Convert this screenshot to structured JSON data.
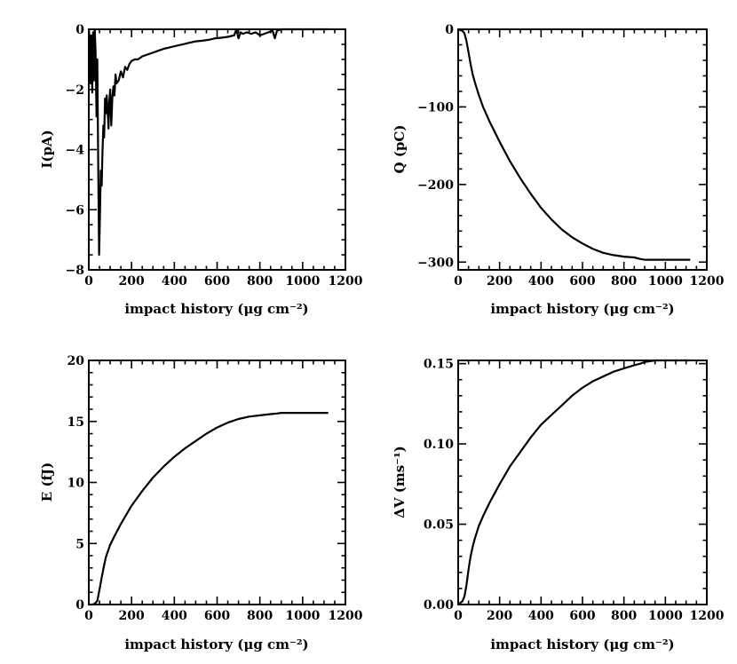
{
  "chart_data": [
    {
      "id": "panel-current",
      "type": "line",
      "ylabel": "I(pA)",
      "xlabel": "impact history (μg cm⁻²)",
      "xlim": [
        0,
        1200
      ],
      "ylim": [
        -8,
        0
      ],
      "xticks": [
        0,
        200,
        400,
        600,
        800,
        1000,
        1200
      ],
      "xtick_labels": [
        "0",
        "200",
        "400",
        "600",
        "800",
        "1000",
        "1200"
      ],
      "yticks": [
        -8,
        -6,
        -4,
        -2,
        0
      ],
      "ytick_labels": [
        "−8",
        "−6",
        "−4",
        "−2",
        "0"
      ],
      "series": [
        {
          "name": "I",
          "x": [
            0,
            4,
            8,
            12,
            16,
            20,
            24,
            28,
            32,
            36,
            40,
            44,
            48,
            52,
            56,
            60,
            64,
            68,
            72,
            76,
            80,
            84,
            88,
            92,
            96,
            100,
            105,
            110,
            115,
            120,
            125,
            130,
            140,
            150,
            160,
            170,
            180,
            190,
            200,
            215,
            230,
            250,
            270,
            290,
            310,
            330,
            350,
            380,
            410,
            440,
            470,
            500,
            530,
            560,
            590,
            620,
            650,
            680,
            690,
            700,
            710,
            720,
            740,
            760,
            780,
            800,
            820,
            840,
            860,
            870,
            880,
            900,
            920,
            940,
            960,
            980,
            1000,
            1040,
            1080,
            1120
          ],
          "y": [
            0,
            -0.3,
            -1.8,
            -0.2,
            -2.1,
            -0.1,
            -1.7,
            0,
            -0.8,
            -2.9,
            -1.0,
            -4.5,
            -7.5,
            -6.3,
            -4.7,
            -5.2,
            -4.1,
            -3.2,
            -3.6,
            -2.3,
            -2.8,
            -2.2,
            -2.7,
            -3.3,
            -2.4,
            -2.0,
            -3.2,
            -2.3,
            -1.9,
            -2.2,
            -1.5,
            -1.8,
            -1.7,
            -1.4,
            -1.6,
            -1.25,
            -1.35,
            -1.15,
            -1.05,
            -1.0,
            -1.0,
            -0.9,
            -0.85,
            -0.8,
            -0.75,
            -0.7,
            -0.65,
            -0.6,
            -0.55,
            -0.5,
            -0.45,
            -0.4,
            -0.38,
            -0.35,
            -0.3,
            -0.28,
            -0.25,
            -0.2,
            0.0,
            -0.3,
            -0.1,
            -0.15,
            -0.1,
            -0.15,
            -0.1,
            -0.2,
            -0.15,
            -0.1,
            -0.05,
            -0.3,
            -0.05,
            0.0,
            0.0,
            0.0,
            0.0,
            0.0,
            0.0,
            0.0,
            0.0,
            0.0
          ]
        }
      ]
    },
    {
      "id": "panel-charge",
      "type": "line",
      "ylabel": "Q (pC)",
      "xlabel": "impact history (μg cm⁻²)",
      "xlim": [
        0,
        1200
      ],
      "ylim": [
        -310,
        0
      ],
      "xticks": [
        0,
        200,
        400,
        600,
        800,
        1000,
        1200
      ],
      "xtick_labels": [
        "0",
        "200",
        "400",
        "600",
        "800",
        "1000",
        "1200"
      ],
      "yticks": [
        -300,
        -200,
        -100,
        0
      ],
      "ytick_labels": [
        "−300",
        "−200",
        "−100",
        "0"
      ],
      "series": [
        {
          "name": "Q",
          "x": [
            0,
            20,
            30,
            40,
            50,
            60,
            70,
            80,
            100,
            120,
            150,
            200,
            250,
            300,
            350,
            400,
            450,
            500,
            550,
            600,
            650,
            700,
            750,
            800,
            850,
            880,
            900,
            950,
            1000,
            1050,
            1120
          ],
          "y": [
            0,
            -2,
            -5,
            -15,
            -30,
            -45,
            -58,
            -68,
            -85,
            -100,
            -118,
            -145,
            -170,
            -192,
            -212,
            -230,
            -245,
            -258,
            -268,
            -276,
            -283,
            -288,
            -291,
            -293,
            -294,
            -296,
            -297,
            -297,
            -297,
            -297,
            -297
          ]
        }
      ]
    },
    {
      "id": "panel-energy",
      "type": "line",
      "ylabel": "E (fJ)",
      "xlabel": "impact history (μg cm⁻²)",
      "xlim": [
        0,
        1200
      ],
      "ylim": [
        0,
        20
      ],
      "xticks": [
        0,
        200,
        400,
        600,
        800,
        1000,
        1200
      ],
      "xtick_labels": [
        "0",
        "200",
        "400",
        "600",
        "800",
        "1000",
        "1200"
      ],
      "yticks": [
        0,
        5,
        10,
        15,
        20
      ],
      "ytick_labels": [
        "0",
        "5",
        "10",
        "15",
        "20"
      ],
      "series": [
        {
          "name": "E",
          "x": [
            0,
            20,
            30,
            40,
            50,
            60,
            70,
            80,
            100,
            120,
            150,
            200,
            250,
            300,
            350,
            400,
            450,
            500,
            550,
            600,
            650,
            700,
            750,
            800,
            850,
            880,
            900,
            950,
            1000,
            1050,
            1120
          ],
          "y": [
            0,
            0,
            0.1,
            0.3,
            1.2,
            2.2,
            3.1,
            3.9,
            4.9,
            5.6,
            6.6,
            8.1,
            9.3,
            10.4,
            11.3,
            12.1,
            12.8,
            13.4,
            14.0,
            14.5,
            14.9,
            15.2,
            15.4,
            15.5,
            15.6,
            15.65,
            15.7,
            15.7,
            15.7,
            15.7,
            15.7
          ]
        }
      ]
    },
    {
      "id": "panel-velocity",
      "type": "line",
      "ylabel": "ΔV (ms⁻¹)",
      "xlabel": "impact history (μg cm⁻²)",
      "xlim": [
        0,
        1200
      ],
      "ylim": [
        0,
        0.152
      ],
      "xticks": [
        0,
        200,
        400,
        600,
        800,
        1000,
        1200
      ],
      "xtick_labels": [
        "0",
        "200",
        "400",
        "600",
        "800",
        "1000",
        "1200"
      ],
      "yticks": [
        0,
        0.05,
        0.1,
        0.15
      ],
      "ytick_labels": [
        "0.00",
        "0.05",
        "0.10",
        "0.15"
      ],
      "series": [
        {
          "name": "ΔV",
          "x": [
            0,
            20,
            30,
            40,
            50,
            60,
            70,
            80,
            100,
            120,
            150,
            200,
            250,
            300,
            350,
            400,
            450,
            500,
            550,
            600,
            650,
            700,
            750,
            800,
            850,
            880,
            900,
            950,
            1000,
            1050,
            1120
          ],
          "y": [
            0,
            0.002,
            0.005,
            0.012,
            0.022,
            0.03,
            0.036,
            0.041,
            0.049,
            0.055,
            0.063,
            0.075,
            0.086,
            0.095,
            0.104,
            0.112,
            0.118,
            0.124,
            0.13,
            0.135,
            0.139,
            0.142,
            0.145,
            0.147,
            0.149,
            0.15,
            0.151,
            0.152,
            0.152,
            0.152,
            0.152
          ]
        }
      ]
    }
  ]
}
